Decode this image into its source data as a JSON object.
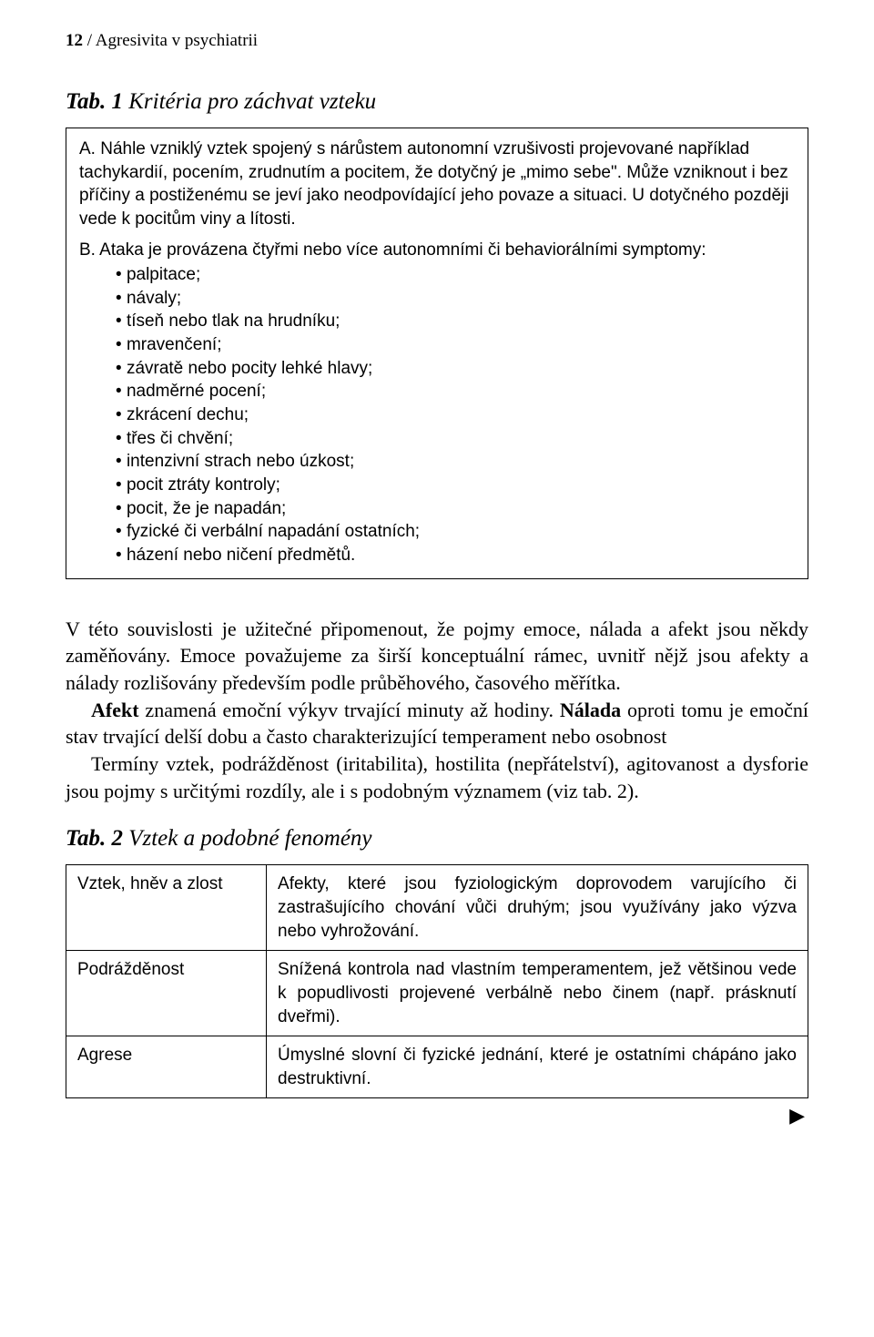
{
  "header": {
    "page_number": "12",
    "running_title": "/ Agresivita v psychiatrii"
  },
  "tab1": {
    "label_bold": "Tab. 1",
    "label_italic": " Kritéria pro záchvat vzteku",
    "criterion_a": "A. Náhle vzniklý vztek spojený s nárůstem autonomní vzrušivosti projevované například tachykardií, pocením, zrudnutím a pocitem, že dotyčný je „mimo sebe\". Může vzniknout i bez příčiny a postiženému se jeví jako neodpovídající jeho povaze a situaci. U dotyčného později vede k pocitům viny a lítosti.",
    "criterion_b_intro": "B. Ataka je provázena čtyřmi nebo více autonomními či behaviorálními symptomy:",
    "criterion_b_items": [
      "palpitace;",
      "návaly;",
      "tíseň nebo tlak na hrudníku;",
      "mravenčení;",
      "závratě nebo pocity lehké hlavy;",
      "nadměrné pocení;",
      "zkrácení dechu;",
      "třes či chvění;",
      "intenzivní strach nebo úzkost;",
      "pocit ztráty kontroly;",
      "pocit, že je napadán;",
      "fyzické či verbální napadání ostatních;",
      "házení nebo ničení předmětů."
    ]
  },
  "body": {
    "p1": "V této souvislosti je užitečné připomenout, že pojmy emoce, nálada a afekt jsou někdy zaměňovány. Emoce považujeme za širší konceptuální rámec, uvnitř nějž jsou afekty a nálady rozlišovány především podle průběhového, časového měřítka.",
    "p2_bold1": "Afekt",
    "p2_part1": " znamená emoční výkyv trvající minuty až hodiny. ",
    "p2_bold2": "Nálada",
    "p2_part2": " oproti tomu je emoční stav trvající delší dobu a často charakterizující temperament nebo osobnost",
    "p3": "Termíny vztek, podrážděnost (iritabilita), hostilita (nepřátelství), agitovanost a dysforie jsou pojmy s určitými rozdíly, ale i s podobným významem (viz tab. 2)."
  },
  "tab2": {
    "label_bold": "Tab. 2",
    "label_italic": " Vztek a podobné fenomény",
    "rows": [
      {
        "term": "Vztek, hněv a zlost",
        "def": "Afekty, které jsou fyziologickým doprovodem varujícího či zastrašujícího chování vůči druhým; jsou využívány jako výzva nebo vyhrožování."
      },
      {
        "term": "Podrážděnost",
        "def": "Snížená kontrola nad vlastním temperamentem, jež většinou vede k popudlivosti projevené verbálně nebo činem (např. prásknutí dveřmi)."
      },
      {
        "term": "Agrese",
        "def": "Úmyslné slovní či fyzické jednání, které je ostatními chápáno jako destruktivní."
      }
    ]
  },
  "continue_marker": "▶"
}
